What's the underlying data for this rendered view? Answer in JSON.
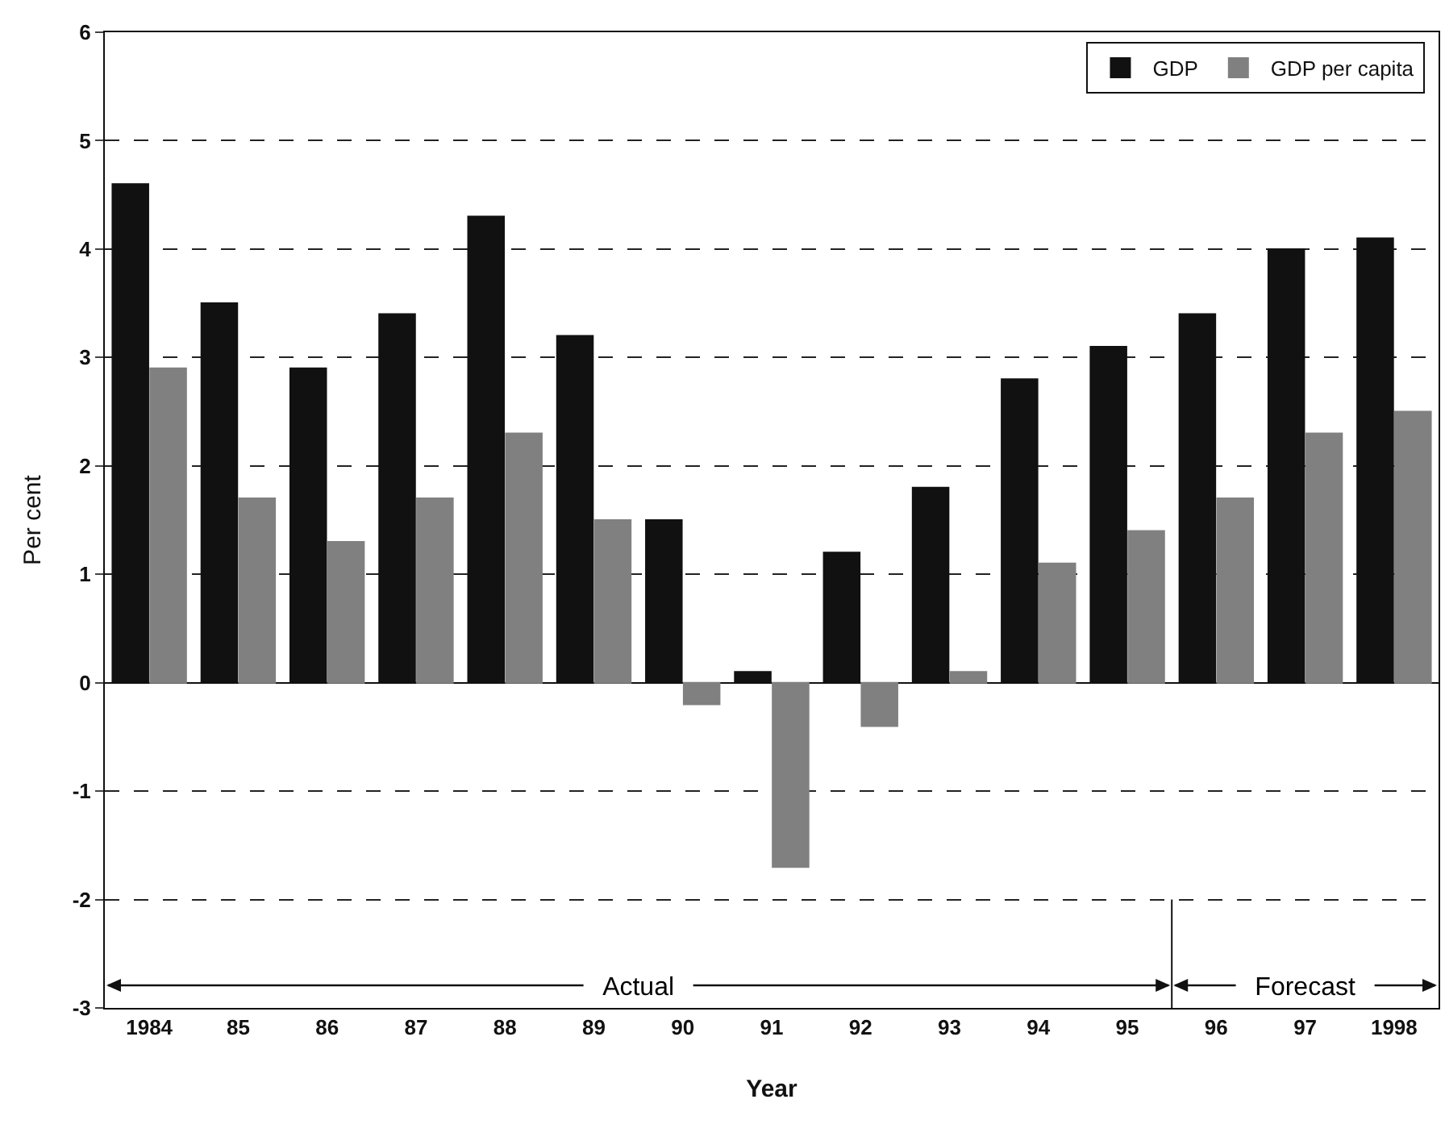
{
  "chart_data": {
    "type": "bar",
    "xlabel": "Year",
    "ylabel": "Per cent",
    "categories": [
      "1984",
      "85",
      "86",
      "87",
      "88",
      "89",
      "90",
      "91",
      "92",
      "93",
      "94",
      "95",
      "96",
      "97",
      "1998"
    ],
    "series": [
      {
        "name": "GDP",
        "color": "#111111",
        "values": [
          4.6,
          3.5,
          2.9,
          3.4,
          4.3,
          3.2,
          1.5,
          0.1,
          1.2,
          1.8,
          2.8,
          3.1,
          3.4,
          4.0,
          4.1
        ]
      },
      {
        "name": "GDP per capita",
        "color": "#808080",
        "values": [
          2.9,
          1.7,
          1.3,
          1.7,
          2.3,
          1.5,
          -0.2,
          -1.7,
          -0.4,
          0.1,
          1.1,
          1.4,
          1.7,
          2.3,
          2.5
        ]
      }
    ],
    "ylim": [
      -3,
      6
    ],
    "yticks": [
      -3,
      -2,
      -1,
      0,
      1,
      2,
      3,
      4,
      5,
      6
    ],
    "grid": "y",
    "legend": "top right",
    "annotations": [
      "Actual",
      "Forecast"
    ]
  }
}
